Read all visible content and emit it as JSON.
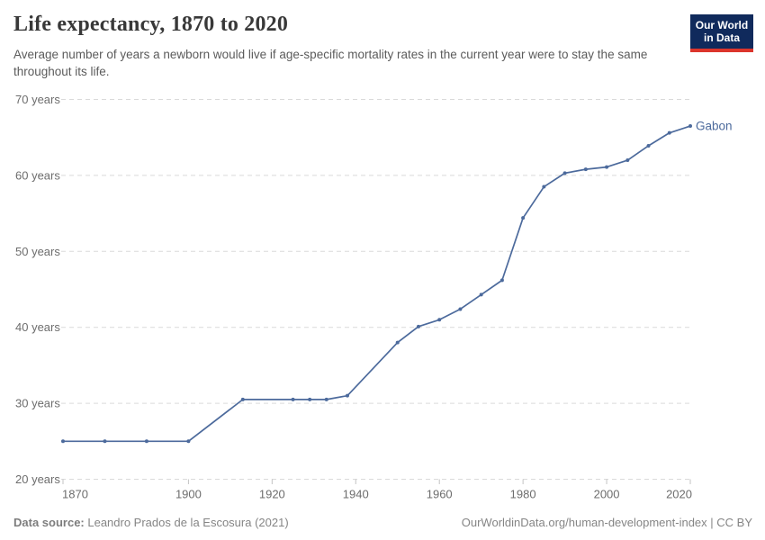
{
  "header": {
    "title": "Life expectancy, 1870 to 2020",
    "subtitle": "Average number of years a newborn would live if age-specific mortality rates in the current year were to stay the same throughout its life.",
    "logo": {
      "line1": "Our World",
      "line2": "in Data"
    }
  },
  "chart_data": {
    "type": "line",
    "title": "Life expectancy, 1870 to 2020",
    "xlabel": "",
    "ylabel": "",
    "x": [
      1870,
      1880,
      1890,
      1900,
      1913,
      1925,
      1929,
      1933,
      1938,
      1950,
      1955,
      1960,
      1965,
      1970,
      1975,
      1980,
      1985,
      1990,
      1995,
      2000,
      2005,
      2010,
      2015,
      2020
    ],
    "series": [
      {
        "name": "Gabon",
        "color": "#4c6a9c",
        "values": [
          25,
          25,
          25,
          25,
          30.5,
          30.5,
          30.5,
          30.5,
          31,
          38,
          40.1,
          41,
          42.4,
          44.3,
          46.2,
          54.4,
          58.5,
          60.3,
          60.8,
          61.1,
          62,
          63.9,
          65.6,
          66.5
        ]
      }
    ],
    "xlim": [
      1870,
      2020
    ],
    "ylim": [
      20,
      70
    ],
    "x_ticks": [
      1870,
      1900,
      1920,
      1940,
      1960,
      1980,
      2000,
      2020
    ],
    "y_ticks": [
      {
        "value": 70,
        "label": "70 years"
      },
      {
        "value": 60,
        "label": "60 years"
      },
      {
        "value": 50,
        "label": "50 years"
      },
      {
        "value": 40,
        "label": "40 years"
      },
      {
        "value": 30,
        "label": "30 years"
      },
      {
        "value": 20,
        "label": "20 years"
      }
    ],
    "grid": "horizontal-dashed",
    "legend": "end-of-line-label"
  },
  "footer": {
    "datasource_label": "Data source:",
    "datasource_value": " Leandro Prados de la Escosura (2021)",
    "attribution": "OurWorldinData.org/human-development-index | CC BY"
  },
  "colors": {
    "line": "#4c6a9c",
    "gridline": "#dadada",
    "tick": "#c3c3c3",
    "tick_text": "#6d6d6d",
    "title_text": "#383838",
    "subtitle_text": "#5b5b5b",
    "footer_text": "#858585",
    "logo_bg": "#102a5c",
    "logo_red": "#dc352c"
  }
}
